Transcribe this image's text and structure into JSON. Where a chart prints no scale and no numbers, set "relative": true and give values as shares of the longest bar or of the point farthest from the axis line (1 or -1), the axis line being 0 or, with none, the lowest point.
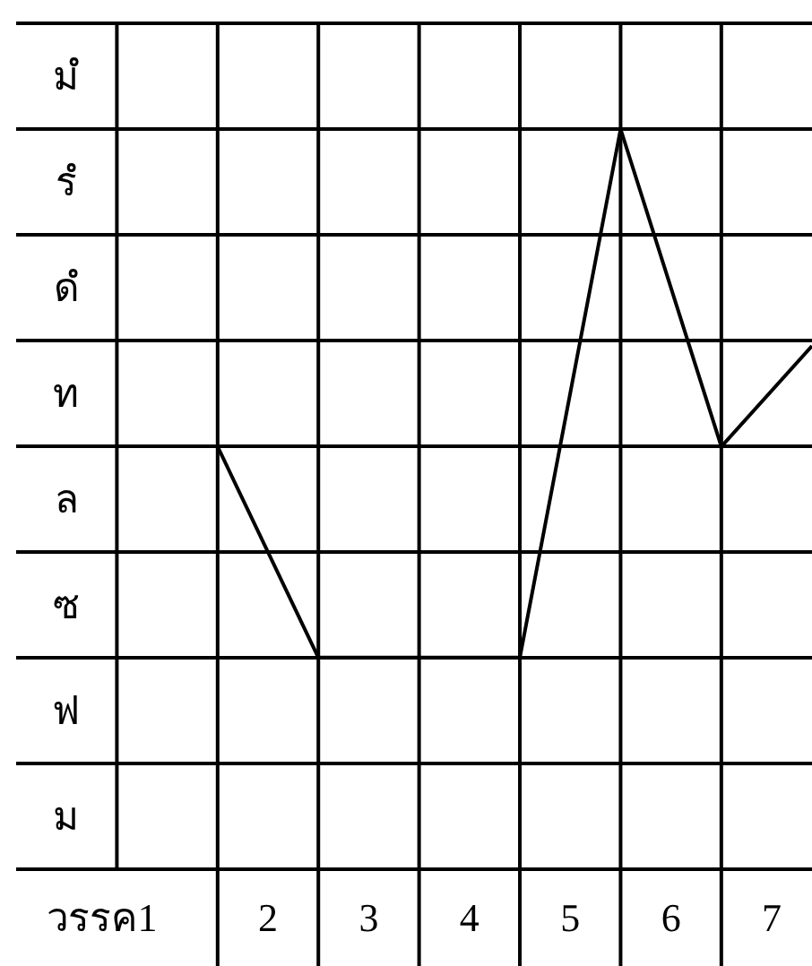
{
  "chart_data": {
    "type": "line",
    "relative": true,
    "xlim": [
      -0.5,
      7.4
    ],
    "xticks": [
      {
        "value": 0.35,
        "label": "วรรค1"
      },
      2,
      3,
      4,
      5,
      6,
      7
    ],
    "y_categories": [
      "มํ",
      "รํ",
      "ดํ",
      "ท",
      "ล",
      "ซ",
      "ฟ",
      "ม"
    ],
    "grid": true,
    "series": [
      {
        "color": "#000000",
        "x": [
          1.5,
          2.5,
          4.5,
          5.5,
          6.5,
          7.4
        ],
        "values": [
          0.571,
          0.286,
          0.286,
          1,
          0.571,
          0.707
        ]
      }
    ]
  }
}
